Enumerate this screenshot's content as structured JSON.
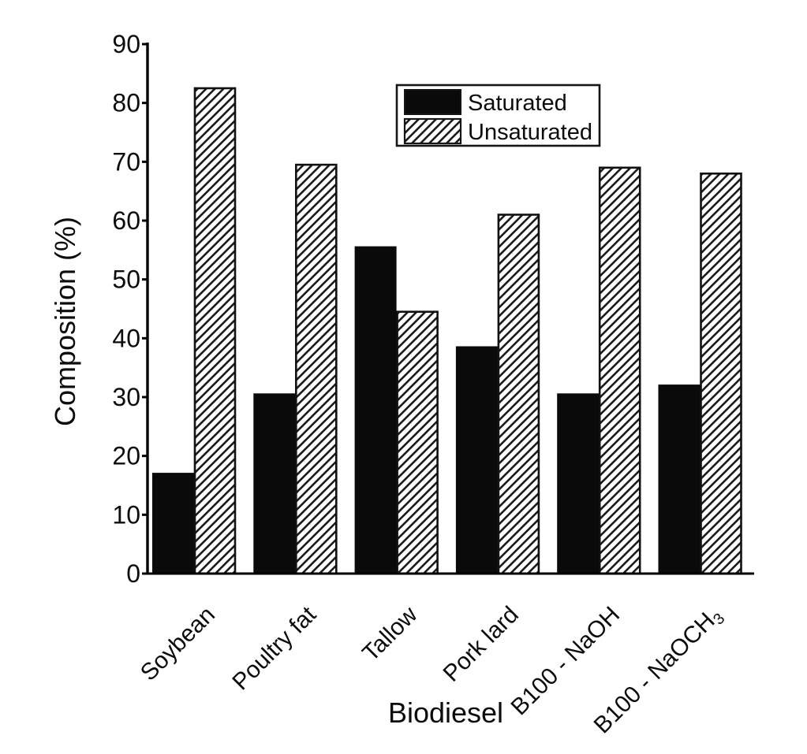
{
  "chart_data": {
    "type": "bar",
    "title": "",
    "xlabel": "Biodiesel",
    "ylabel": "Composition (%)",
    "ylim": [
      0,
      90
    ],
    "ytick_step": 10,
    "grid": false,
    "legend_position": "upper-center-inside",
    "categories": [
      {
        "label": "Soybean"
      },
      {
        "label": "Poultry fat"
      },
      {
        "label": "Tallow"
      },
      {
        "label": "Pork lard"
      },
      {
        "label": "B100 - NaOH"
      },
      {
        "label": "B100 - NaOCH",
        "subscript": "3"
      }
    ],
    "series": [
      {
        "name": "Saturated",
        "style": "solid-black",
        "values": [
          17,
          30.5,
          55.5,
          38.5,
          30.5,
          32
        ]
      },
      {
        "name": "Unsaturated",
        "style": "diagonal-hatch",
        "values": [
          82.5,
          69.5,
          44.5,
          61,
          69,
          68
        ]
      }
    ],
    "colors": {
      "bar_fill": "#0a0a0a",
      "hatch_line": "#1c1c1c",
      "axis": "#000000",
      "background": "#ffffff"
    }
  }
}
